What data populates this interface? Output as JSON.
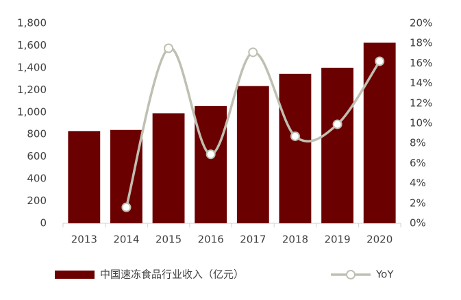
{
  "chart_data": {
    "type": "bar",
    "categories": [
      "2013",
      "2014",
      "2015",
      "2016",
      "2017",
      "2018",
      "2019",
      "2020"
    ],
    "series": [
      {
        "name": "中国速冻食品行业收入（亿元）",
        "color": "#6b0000",
        "type": "bar",
        "values": [
          830,
          840,
          990,
          1055,
          1235,
          1345,
          1400,
          1625
        ]
      },
      {
        "name": "YoY",
        "color": "#bfbfb2",
        "type": "line",
        "axis": "y2",
        "values": [
          null,
          1.6,
          17.5,
          6.9,
          17.1,
          8.7,
          9.9,
          16.2
        ]
      }
    ],
    "ylim": [
      0,
      1800
    ],
    "yticks": [
      0,
      200,
      400,
      600,
      800,
      {
        "value": 1000,
        "label": "1,000"
      },
      {
        "value": 1200,
        "label": "1,200"
      },
      {
        "value": 1400,
        "label": "1,400"
      },
      {
        "value": 1600,
        "label": "1,600"
      },
      {
        "value": 1800,
        "label": "1,800"
      }
    ],
    "y2lim": [
      0,
      20
    ],
    "y2ticks": [
      {
        "value": 0,
        "label": "0%"
      },
      {
        "value": 2,
        "label": "2%"
      },
      {
        "value": 4,
        "label": "4%"
      },
      {
        "value": 6,
        "label": "6%"
      },
      {
        "value": 8,
        "label": "8%"
      },
      {
        "value": 10,
        "label": "10%"
      },
      {
        "value": 12,
        "label": "12%"
      },
      {
        "value": 14,
        "label": "14%"
      },
      {
        "value": 16,
        "label": "16%"
      },
      {
        "value": 18,
        "label": "18%"
      },
      {
        "value": 20,
        "label": "20%"
      }
    ],
    "grid": false,
    "legend": "bottom"
  }
}
